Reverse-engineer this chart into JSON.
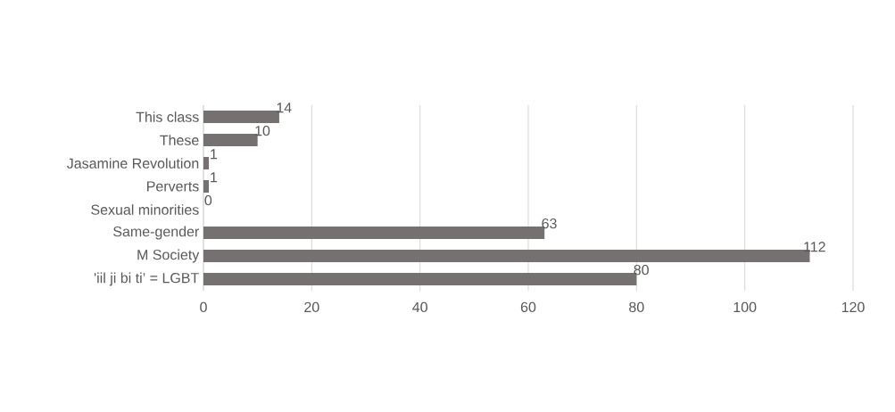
{
  "chart_data": {
    "type": "bar",
    "orientation": "horizontal",
    "categories": [
      "This class",
      "These",
      "Jasamine  Revolution",
      "Perverts",
      "Sexual minorities",
      "Same-gender",
      "M Society",
      "'iil ji bi ti’  = LGBT"
    ],
    "values": [
      14,
      10,
      1,
      1,
      0,
      63,
      112,
      80
    ],
    "color": "#767171",
    "xlim": [
      0,
      120
    ],
    "xticks": [
      0,
      20,
      40,
      60,
      80,
      100,
      120
    ],
    "grid": "x",
    "data_labels": true
  }
}
